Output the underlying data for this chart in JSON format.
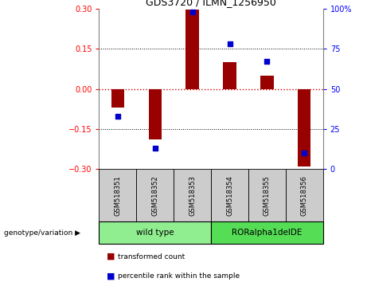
{
  "title": "GDS3720 / ILMN_1256950",
  "samples": [
    "GSM518351",
    "GSM518352",
    "GSM518353",
    "GSM518354",
    "GSM518355",
    "GSM518356"
  ],
  "bar_values": [
    -0.07,
    -0.19,
    0.295,
    0.1,
    0.05,
    -0.29
  ],
  "percentile_values": [
    33,
    13,
    98,
    78,
    67,
    10
  ],
  "ylim_left": [
    -0.3,
    0.3
  ],
  "ylim_right": [
    0,
    100
  ],
  "yticks_left": [
    -0.3,
    -0.15,
    0,
    0.15,
    0.3
  ],
  "yticks_right": [
    0,
    25,
    50,
    75,
    100
  ],
  "bar_color": "#990000",
  "dot_color": "#0000CC",
  "zero_line_color": "#CC0000",
  "genotype_groups": [
    {
      "label": "wild type",
      "indices": [
        0,
        1,
        2
      ],
      "color": "#90EE90"
    },
    {
      "label": "RORalpha1delDE",
      "indices": [
        3,
        4,
        5
      ],
      "color": "#55DD55"
    }
  ],
  "legend_bar_label": "transformed count",
  "legend_dot_label": "percentile rank within the sample",
  "genotype_label": "genotype/variation",
  "sample_box_color": "#cccccc",
  "bar_width": 0.35,
  "dot_size": 25
}
